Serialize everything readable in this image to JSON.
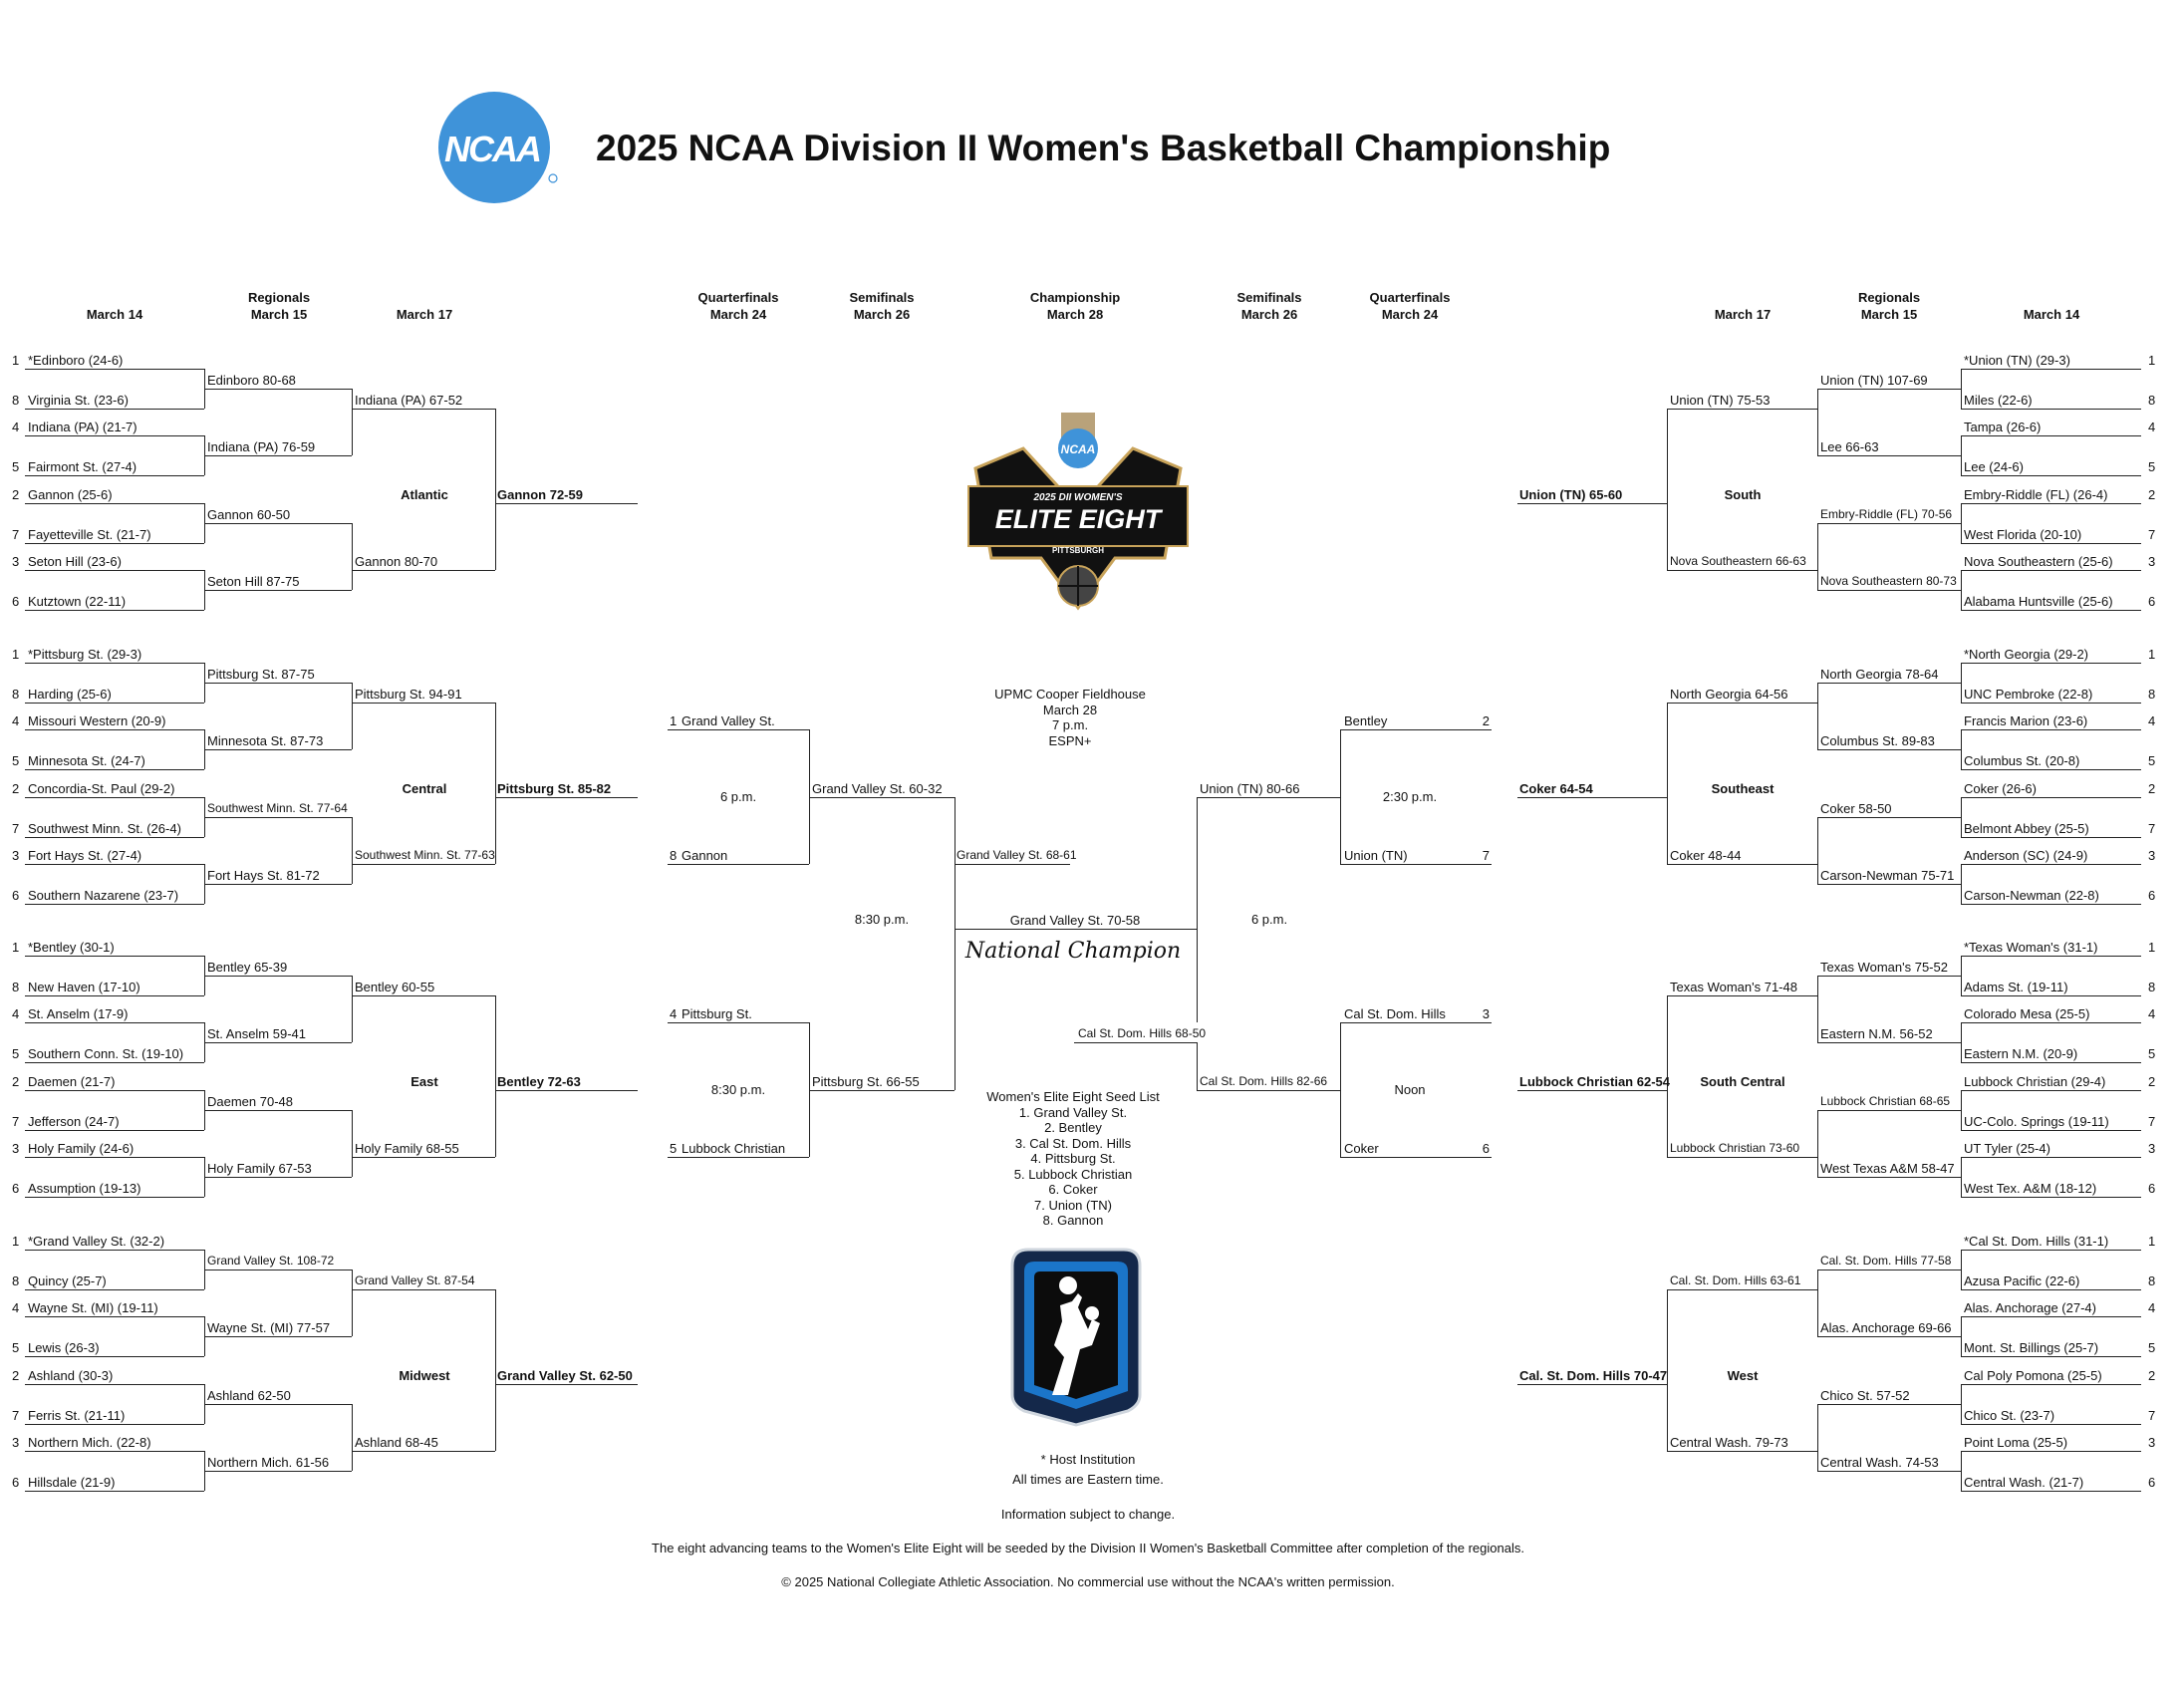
{
  "title": "2025 NCAA Division II Women's Basketball Championship",
  "logos": {
    "ncaa_text": "NCAA",
    "elite_eight_lines": [
      "NCAA",
      "2025 DII WOMEN'S",
      "ELITE EIGHT",
      "PITTSBURGH"
    ],
    "colors": {
      "ncaa_blue": "#3f93d9",
      "gold": "#c8a35a",
      "navy": "#14284a",
      "black": "#111111"
    }
  },
  "headers": {
    "left_r1": [
      "March 14"
    ],
    "left_r2": [
      "Regionals",
      "March 15"
    ],
    "left_r3": [
      "March 17"
    ],
    "left_qf": [
      "Quarterfinals",
      "March 24"
    ],
    "left_sf": [
      "Semifinals",
      "March 26"
    ],
    "final": [
      "Championship",
      "March 28"
    ],
    "right_sf": [
      "Semifinals",
      "March 26"
    ],
    "right_qf": [
      "Quarterfinals",
      "March 24"
    ],
    "right_r3": [
      "March 17"
    ],
    "right_r2": [
      "Regionals",
      "March 15"
    ],
    "right_r1": [
      "March 14"
    ]
  },
  "left_regions": [
    {
      "name": "Atlantic",
      "r1": [
        {
          "seed": "1",
          "team": "*Edinboro (24-6)"
        },
        {
          "seed": "8",
          "team": "Virginia St. (23-6)"
        },
        {
          "seed": "4",
          "team": "Indiana (PA) (21-7)"
        },
        {
          "seed": "5",
          "team": "Fairmont St. (27-4)"
        },
        {
          "seed": "2",
          "team": "Gannon (25-6)"
        },
        {
          "seed": "7",
          "team": "Fayetteville St. (21-7)"
        },
        {
          "seed": "3",
          "team": "Seton Hill (23-6)"
        },
        {
          "seed": "6",
          "team": "Kutztown (22-11)"
        }
      ],
      "r2": [
        "Edinboro 80-68",
        "Indiana (PA) 76-59",
        "Gannon 60-50",
        "Seton Hill 87-75"
      ],
      "r3": [
        "Indiana (PA) 67-52",
        "Gannon 80-70"
      ],
      "r4": "Gannon 72-59"
    },
    {
      "name": "Central",
      "r1": [
        {
          "seed": "1",
          "team": "*Pittsburg St. (29-3)"
        },
        {
          "seed": "8",
          "team": "Harding (25-6)"
        },
        {
          "seed": "4",
          "team": "Missouri Western (20-9)"
        },
        {
          "seed": "5",
          "team": "Minnesota St. (24-7)"
        },
        {
          "seed": "2",
          "team": "Concordia-St. Paul (29-2)"
        },
        {
          "seed": "7",
          "team": "Southwest Minn. St. (26-4)"
        },
        {
          "seed": "3",
          "team": "Fort Hays St. (27-4)"
        },
        {
          "seed": "6",
          "team": "Southern Nazarene (23-7)"
        }
      ],
      "r2": [
        "Pittsburg St. 87-75",
        "Minnesota St. 87-73",
        "Southwest Minn. St. 77-64",
        "Fort Hays St. 81-72"
      ],
      "r3": [
        "Pittsburg St. 94-91",
        "Southwest Minn. St. 77-63"
      ],
      "r4": "Pittsburg St. 85-82"
    },
    {
      "name": "East",
      "r1": [
        {
          "seed": "1",
          "team": "*Bentley (30-1)"
        },
        {
          "seed": "8",
          "team": "New Haven (17-10)"
        },
        {
          "seed": "4",
          "team": "St. Anselm (17-9)"
        },
        {
          "seed": "5",
          "team": "Southern Conn. St. (19-10)"
        },
        {
          "seed": "2",
          "team": "Daemen (21-7)"
        },
        {
          "seed": "7",
          "team": "Jefferson (24-7)"
        },
        {
          "seed": "3",
          "team": "Holy Family (24-6)"
        },
        {
          "seed": "6",
          "team": "Assumption (19-13)"
        }
      ],
      "r2": [
        "Bentley 65-39",
        "St. Anselm 59-41",
        "Daemen 70-48",
        "Holy Family 67-53"
      ],
      "r3": [
        "Bentley 60-55",
        "Holy Family 68-55"
      ],
      "r4": "Bentley 72-63"
    },
    {
      "name": "Midwest",
      "r1": [
        {
          "seed": "1",
          "team": "*Grand Valley St. (32-2)"
        },
        {
          "seed": "8",
          "team": "Quincy (25-7)"
        },
        {
          "seed": "4",
          "team": "Wayne St. (MI) (19-11)"
        },
        {
          "seed": "5",
          "team": "Lewis (26-3)"
        },
        {
          "seed": "2",
          "team": "Ashland (30-3)"
        },
        {
          "seed": "7",
          "team": "Ferris St. (21-11)"
        },
        {
          "seed": "3",
          "team": "Northern Mich. (22-8)"
        },
        {
          "seed": "6",
          "team": "Hillsdale (21-9)"
        }
      ],
      "r2": [
        "Grand Valley St. 108-72",
        "Wayne St. (MI) 77-57",
        "Ashland 62-50",
        "Northern Mich. 61-56"
      ],
      "r3": [
        "Grand Valley St. 87-54",
        "Ashland 68-45"
      ],
      "r4": "Grand Valley St. 62-50"
    }
  ],
  "right_regions": [
    {
      "name": "South",
      "r1": [
        {
          "seed": "1",
          "team": "*Union (TN) (29-3)"
        },
        {
          "seed": "8",
          "team": "Miles (22-6)"
        },
        {
          "seed": "4",
          "team": "Tampa (26-6)"
        },
        {
          "seed": "5",
          "team": "Lee (24-6)"
        },
        {
          "seed": "2",
          "team": "Embry-Riddle (FL) (26-4)"
        },
        {
          "seed": "7",
          "team": "West Florida (20-10)"
        },
        {
          "seed": "3",
          "team": "Nova Southeastern (25-6)"
        },
        {
          "seed": "6",
          "team": "Alabama Huntsville (25-6)"
        }
      ],
      "r2": [
        "Union (TN) 107-69",
        "Lee 66-63",
        "Embry-Riddle (FL) 70-56",
        "Nova Southeastern 80-73"
      ],
      "r3": [
        "Union (TN) 75-53",
        "Nova Southeastern 66-63"
      ],
      "r4": "Union (TN) 65-60"
    },
    {
      "name": "Southeast",
      "r1": [
        {
          "seed": "1",
          "team": "*North Georgia (29-2)"
        },
        {
          "seed": "8",
          "team": "UNC Pembroke (22-8)"
        },
        {
          "seed": "4",
          "team": "Francis Marion (23-6)"
        },
        {
          "seed": "5",
          "team": "Columbus St. (20-8)"
        },
        {
          "seed": "2",
          "team": "Coker (26-6)"
        },
        {
          "seed": "7",
          "team": "Belmont Abbey (25-5)"
        },
        {
          "seed": "3",
          "team": "Anderson (SC) (24-9)"
        },
        {
          "seed": "6",
          "team": "Carson-Newman (22-8)"
        }
      ],
      "r2": [
        "North Georgia 78-64",
        "Columbus St. 89-83",
        "Coker 58-50",
        "Carson-Newman 75-71"
      ],
      "r3": [
        "North Georgia 64-56",
        "Coker 48-44"
      ],
      "r4": "Coker 64-54"
    },
    {
      "name": "South Central",
      "r1": [
        {
          "seed": "1",
          "team": "*Texas Woman's (31-1)"
        },
        {
          "seed": "8",
          "team": "Adams St. (19-11)"
        },
        {
          "seed": "4",
          "team": "Colorado Mesa (25-5)"
        },
        {
          "seed": "5",
          "team": "Eastern N.M. (20-9)"
        },
        {
          "seed": "2",
          "team": "Lubbock Christian (29-4)"
        },
        {
          "seed": "7",
          "team": "UC-Colo. Springs (19-11)"
        },
        {
          "seed": "3",
          "team": "UT Tyler (25-4)"
        },
        {
          "seed": "6",
          "team": "West Tex. A&M (18-12)"
        }
      ],
      "r2": [
        "Texas Woman's 75-52",
        "Eastern N.M. 56-52",
        "Lubbock Christian 68-65",
        "West Texas A&M 58-47"
      ],
      "r3": [
        "Texas Woman's 71-48",
        "Lubbock Christian 73-60"
      ],
      "r4": "Lubbock Christian 62-54"
    },
    {
      "name": "West",
      "r1": [
        {
          "seed": "1",
          "team": "*Cal St. Dom. Hills (31-1)"
        },
        {
          "seed": "8",
          "team": "Azusa Pacific (22-6)"
        },
        {
          "seed": "4",
          "team": "Alas. Anchorage (27-4)"
        },
        {
          "seed": "5",
          "team": "Mont. St. Billings (25-7)"
        },
        {
          "seed": "2",
          "team": "Cal Poly Pomona (25-5)"
        },
        {
          "seed": "7",
          "team": "Chico St. (23-7)"
        },
        {
          "seed": "3",
          "team": "Point Loma (25-5)"
        },
        {
          "seed": "6",
          "team": "Central Wash. (21-7)"
        }
      ],
      "r2": [
        "Cal. St. Dom. Hills 77-58",
        "Alas. Anchorage 69-66",
        "Chico St. 57-52",
        "Central Wash. 74-53"
      ],
      "r3": [
        "Cal. St. Dom. Hills 63-61",
        "Central Wash. 79-73"
      ],
      "r4": "Cal. St. Dom. Hills 70-47"
    }
  ],
  "elite_eight": {
    "left_qf": [
      {
        "teams": [
          {
            "seed": "1",
            "team": "Grand Valley St."
          },
          {
            "seed": "8",
            "team": "Gannon"
          }
        ],
        "time": "6 p.m."
      },
      {
        "teams": [
          {
            "seed": "4",
            "team": "Pittsburg St."
          },
          {
            "seed": "5",
            "team": "Lubbock Christian"
          }
        ],
        "time": "8:30 p.m."
      }
    ],
    "right_qf": [
      {
        "teams": [
          {
            "seed": "2",
            "team": "Bentley"
          },
          {
            "seed": "7",
            "team": "Union (TN)"
          }
        ],
        "time": "2:30 p.m."
      },
      {
        "teams": [
          {
            "seed": "3",
            "team": "Cal St. Dom. Hills"
          },
          {
            "seed": "6",
            "team": "Coker"
          }
        ],
        "time": "Noon"
      }
    ],
    "left_sf": [
      "Grand Valley St. 60-32",
      "Pittsburg St. 66-55"
    ],
    "left_sf_time": "8:30 p.m.",
    "right_sf": [
      "Union (TN) 80-66",
      "Cal St. Dom. Hills 82-66"
    ],
    "right_sf_time": "6 p.m.",
    "left_finalist": "Grand Valley St. 68-61",
    "right_finalist": "Cal St. Dom. Hills 68-50",
    "champion": "Grand Valley St. 70-58",
    "champion_label": "National Champion",
    "venue": [
      "UPMC Cooper Fieldhouse",
      "March 28",
      "7 p.m.",
      "ESPN+"
    ],
    "seed_list_title": "Women's Elite Eight Seed List",
    "seed_list": [
      "1. Grand Valley St.",
      "2. Bentley",
      "3. Cal St. Dom. Hills",
      "4. Pittsburg St.",
      "5. Lubbock Christian",
      "6. Coker",
      "7. Union (TN)",
      "8. Gannon"
    ]
  },
  "footer": {
    "host_note": "* Host Institution",
    "times_note": "All times are Eastern time.",
    "change_note": "Information subject to change.",
    "seeding_note": "The eight advancing teams to the Women's Elite Eight will be seeded by the Division II Women's Basketball Committee after completion of the regionals.",
    "copyright": "© 2025 National Collegiate Athletic Association. No commercial use without the NCAA's written permission."
  }
}
